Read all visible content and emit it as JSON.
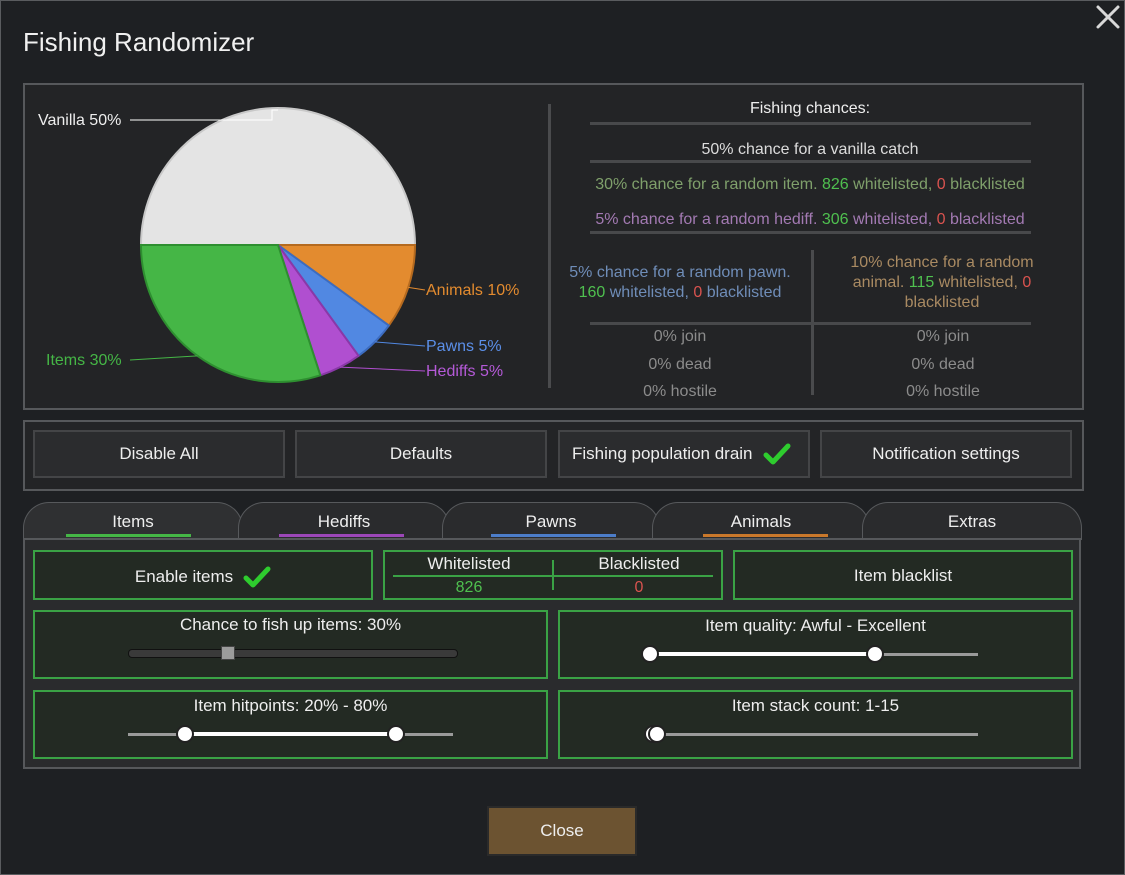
{
  "window": {
    "title": "Fishing Randomizer"
  },
  "colors": {
    "vanilla": "#e4e4e4",
    "items": "#45b646",
    "animals": "#e38b2f",
    "pawns": "#5188e2",
    "hediffs": "#b04fd0",
    "green_text": "#4fc04f",
    "red_text": "#d9534f"
  },
  "chart_data": {
    "type": "pie",
    "slices": [
      {
        "label": "Vanilla 50%",
        "value": 50
      },
      {
        "label": "Animals 10%",
        "value": 10
      },
      {
        "label": "Pawns 5%",
        "value": 5
      },
      {
        "label": "Hediffs 5%",
        "value": 5
      },
      {
        "label": "Items 30%",
        "value": 30
      }
    ]
  },
  "chances": {
    "header": "Fishing chances:",
    "vanilla": "50% chance for a vanilla catch",
    "item": {
      "pre": "30% chance for a random item. ",
      "wl": "826",
      "wl_suffix": " whitelisted, ",
      "bl": "0",
      "bl_suffix": " blacklisted"
    },
    "hediff": {
      "pre": "5% chance for a random hediff. ",
      "wl": "306",
      "wl_suffix": " whitelisted, ",
      "bl": "0",
      "bl_suffix": " blacklisted"
    },
    "pawn": {
      "line1": "5% chance for a random pawn.",
      "wl": "160",
      "wl_suffix": " whitelisted, ",
      "bl": "0",
      "bl_suffix": " blacklisted"
    },
    "animal": {
      "line1": "10% chance for a random",
      "pre2": "animal. ",
      "wl": "115",
      "wl_suffix": " whitelisted, ",
      "bl": "0",
      "line3": "blacklisted"
    },
    "pawn_stats": [
      "0% join",
      "0% dead",
      "0% hostile"
    ],
    "animal_stats": [
      "0% join",
      "0% dead",
      "0% hostile"
    ]
  },
  "buttons": {
    "disable_all": "Disable All",
    "defaults": "Defaults",
    "population_drain": "Fishing population drain",
    "notification_settings": "Notification settings"
  },
  "tabs": [
    {
      "label": "Items"
    },
    {
      "label": "Hediffs"
    },
    {
      "label": "Pawns"
    },
    {
      "label": "Animals"
    },
    {
      "label": "Extras"
    }
  ],
  "items_tab": {
    "enable_label": "Enable items",
    "whitelisted_label": "Whitelisted",
    "blacklisted_label": "Blacklisted",
    "whitelisted_count": "826",
    "blacklisted_count": "0",
    "item_blacklist": "Item blacklist",
    "chance_label": "Chance to fish up items: 30%",
    "chance_value": 0.3,
    "quality_label": "Item quality: Awful - Excellent",
    "hitpoints_label": "Item hitpoints: 20% - 80%",
    "hitpoints_range": [
      0.2,
      0.8
    ],
    "stack_label": "Item stack count: 1-15"
  },
  "footer": {
    "close": "Close"
  }
}
